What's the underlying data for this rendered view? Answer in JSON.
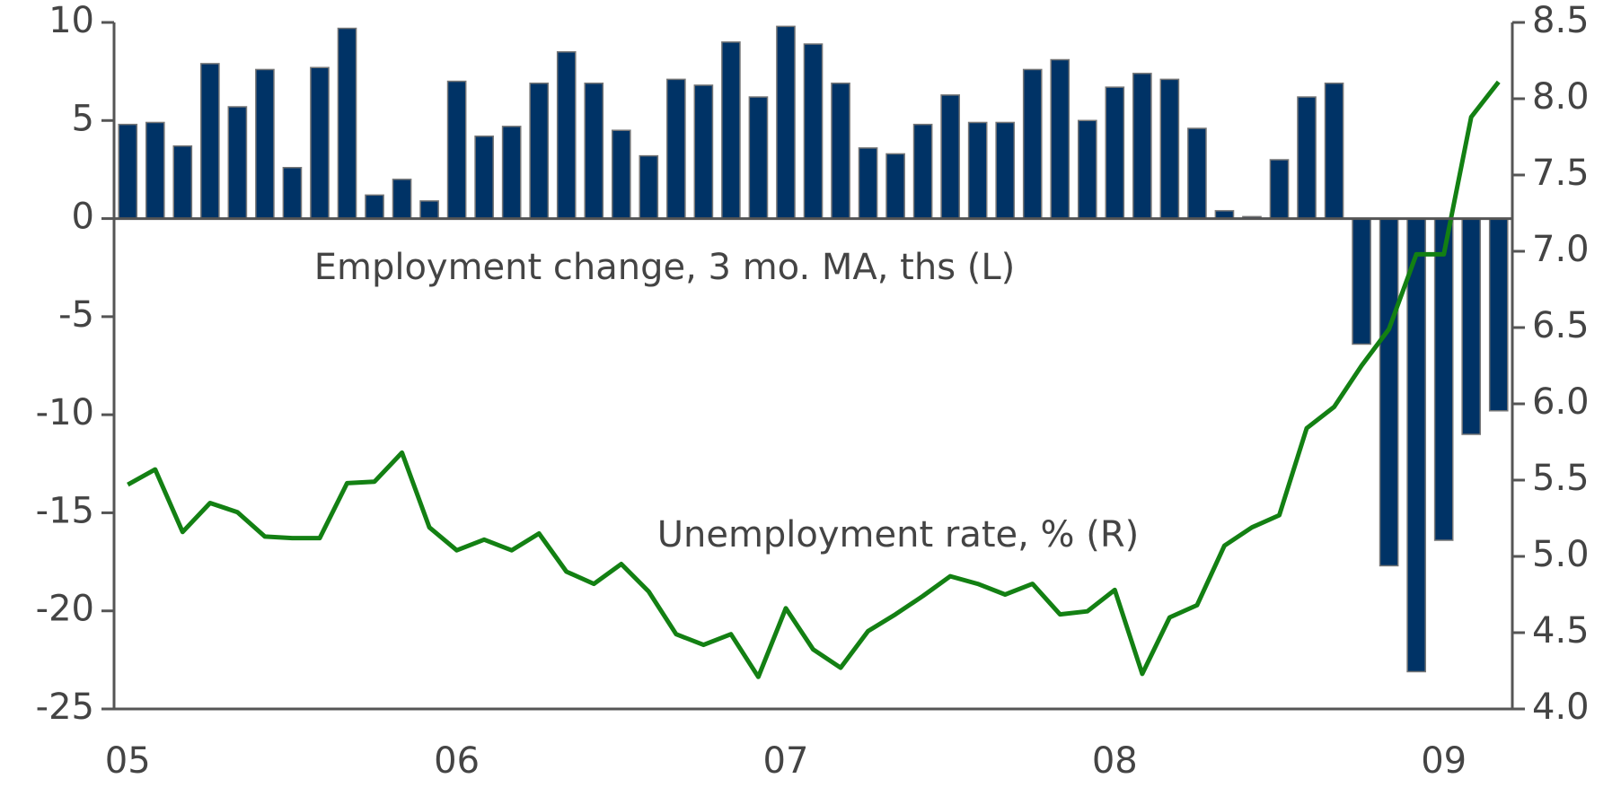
{
  "chart_data": {
    "type": "bar_line",
    "categories": [
      "05",
      null,
      null,
      null,
      null,
      null,
      null,
      null,
      null,
      null,
      null,
      null,
      "06",
      null,
      null,
      null,
      null,
      null,
      null,
      null,
      null,
      null,
      null,
      null,
      "07",
      null,
      null,
      null,
      null,
      null,
      null,
      null,
      null,
      null,
      null,
      null,
      "08",
      null,
      null,
      null,
      null,
      null,
      null,
      null,
      null,
      null,
      null,
      null,
      "09",
      null,
      null
    ],
    "series": [
      {
        "type": "bar",
        "color": "#003366",
        "values": [
          4.8,
          4.9,
          3.7,
          7.9,
          5.7,
          7.6,
          2.6,
          7.7,
          9.7,
          1.2,
          2.0,
          0.9,
          7.0,
          4.2,
          4.7,
          6.9,
          8.5,
          6.9,
          4.5,
          3.2,
          7.1,
          6.8,
          9.0,
          6.2,
          9.8,
          8.9,
          6.9,
          3.6,
          3.3,
          4.8,
          6.3,
          4.9,
          4.9,
          7.6,
          8.1,
          5.0,
          6.7,
          7.4,
          7.1,
          4.6,
          0.4,
          0.1,
          3.0,
          6.2,
          6.9,
          -6.4,
          -17.7,
          -23.1,
          -16.4,
          -11.0,
          -9.8
        ]
      },
      {
        "type": "line",
        "axis": "y2",
        "color": "#138013",
        "values": [
          5.47,
          5.57,
          5.16,
          5.35,
          5.29,
          5.13,
          5.12,
          5.12,
          5.48,
          5.49,
          5.68,
          5.19,
          5.04,
          5.11,
          5.04,
          5.15,
          4.9,
          4.82,
          4.95,
          4.77,
          4.49,
          4.42,
          4.49,
          4.21,
          4.66,
          4.39,
          4.27,
          4.51,
          4.62,
          4.74,
          4.87,
          4.82,
          4.75,
          4.82,
          4.62,
          4.64,
          4.78,
          4.23,
          4.6,
          4.68,
          5.07,
          5.19,
          5.27,
          5.84,
          5.98,
          6.25,
          6.49,
          6.98,
          6.98,
          7.88,
          8.11
        ]
      }
    ],
    "annotations": [
      "Employment change, 3 mo. MA, ths (L)",
      "Unemployment rate, % (R)"
    ],
    "ylim": [
      -25,
      10
    ],
    "yticks": [
      -25,
      -20,
      -15,
      -10,
      -5,
      0,
      5,
      10
    ],
    "y2lim": [
      4,
      8.5
    ],
    "y2ticks": [
      {
        "value": 4,
        "label": "4.0"
      },
      4.5,
      {
        "value": 5,
        "label": "5.0"
      },
      5.5,
      {
        "value": 6,
        "label": "6.0"
      },
      6.5,
      {
        "value": 7,
        "label": "7.0"
      },
      7.5,
      {
        "value": 8,
        "label": "8.0"
      },
      8.5
    ]
  }
}
